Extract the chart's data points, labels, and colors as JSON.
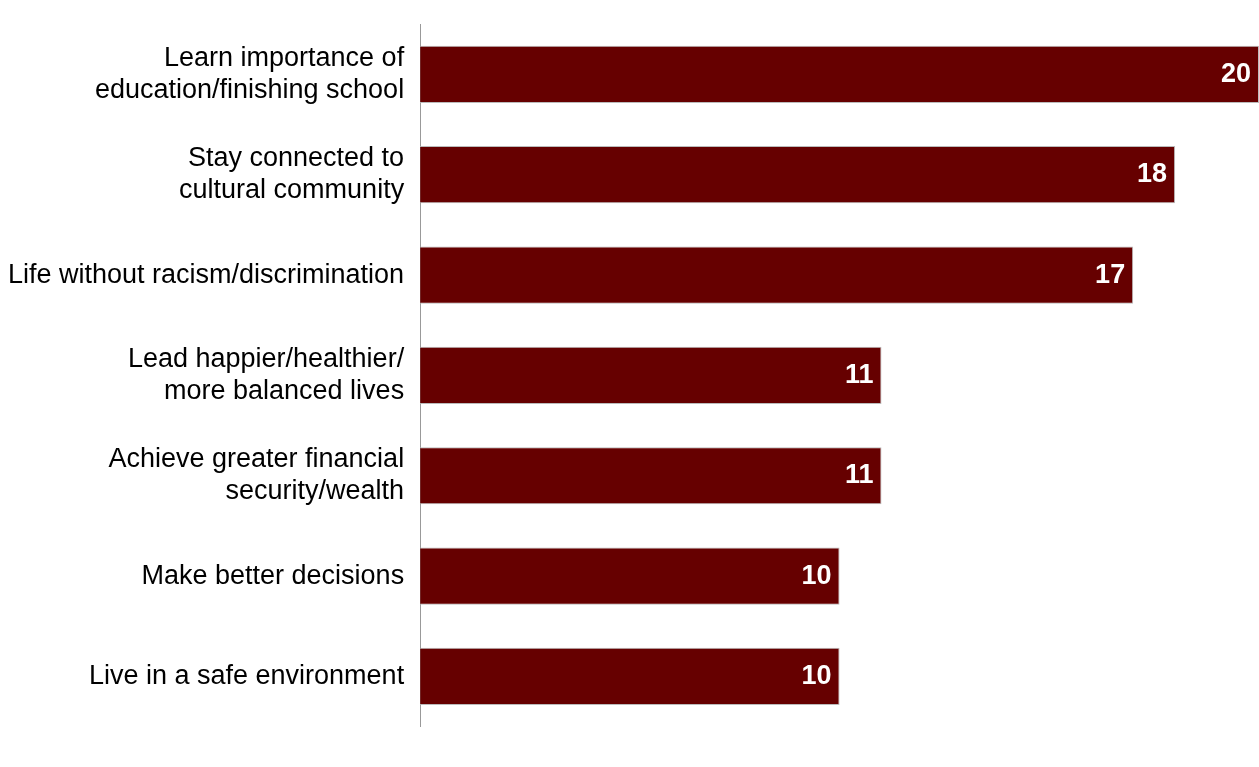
{
  "chart_data": {
    "type": "bar",
    "orientation": "horizontal",
    "categories": [
      "Learn importance of\neducation/finishing school",
      "Stay connected to\ncultural community",
      "Life without racism/discrimination",
      "Lead happier/healthier/\nmore balanced lives",
      "Achieve greater financial\nsecurity/wealth",
      "Make better decisions",
      "Live in a safe environment"
    ],
    "values": [
      20,
      18,
      17,
      11,
      11,
      10,
      10
    ],
    "color": "#660000",
    "xlim": [
      0,
      20
    ],
    "data_labels": true,
    "legend": false
  }
}
